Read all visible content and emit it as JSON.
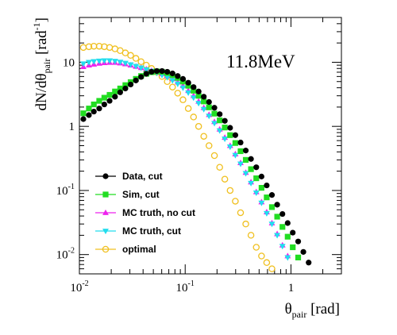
{
  "chart_data": {
    "type": "scatter",
    "annotation": "11.8MeV",
    "xlabel": {
      "main": "θ",
      "sub": "pair",
      "unit": " [rad]"
    },
    "ylabel": {
      "main": "dN/dθ",
      "sub": "pair",
      "unit_open": " [rad",
      "unit_exp": "-1",
      "unit_close": "]"
    },
    "x_scale": "log",
    "y_scale": "log",
    "xlim": [
      0.01,
      3.0
    ],
    "ylim": [
      0.005,
      50
    ],
    "x_ticks": [
      {
        "value": 0.01,
        "base": "10",
        "exp": "-2"
      },
      {
        "value": 0.1,
        "base": "10",
        "exp": "-1"
      },
      {
        "value": 1,
        "base": "1",
        "exp": ""
      }
    ],
    "y_ticks": [
      {
        "value": 0.01,
        "base": "10",
        "exp": "-2"
      },
      {
        "value": 0.1,
        "base": "10",
        "exp": "-1"
      },
      {
        "value": 1,
        "base": "1",
        "exp": ""
      },
      {
        "value": 10,
        "base": "10",
        "exp": ""
      }
    ],
    "grid": false,
    "legend_position": "bottom-left",
    "series": [
      {
        "name": "optimal",
        "color": "#f0c020",
        "marker": "open-circle",
        "x": [
          0.0109,
          0.0123,
          0.0137,
          0.0154,
          0.0172,
          0.0193,
          0.0217,
          0.0243,
          0.0272,
          0.0305,
          0.0342,
          0.0383,
          0.0429,
          0.0481,
          0.0539,
          0.0604,
          0.0677,
          0.0759,
          0.085,
          0.0953,
          0.107,
          0.12,
          0.134,
          0.15,
          0.168,
          0.189,
          0.212,
          0.237,
          0.266,
          0.298,
          0.334,
          0.374,
          0.419,
          0.47,
          0.527,
          0.59,
          0.661,
          0.741
        ],
        "y": [
          17,
          17.5,
          17.8,
          17.8,
          17.5,
          17,
          16.2,
          15.2,
          14,
          12.8,
          11.5,
          10.2,
          9,
          8,
          7,
          6,
          5,
          4.1,
          3.3,
          2.6,
          1.9,
          1.4,
          1.0,
          0.7,
          0.5,
          0.35,
          0.23,
          0.15,
          0.1,
          0.068,
          0.045,
          0.03,
          0.02,
          0.013,
          0.0095,
          0.0075,
          0.006,
          0.0043
        ]
      },
      {
        "name": "MC truth, no cut",
        "color": "#ee22ee",
        "marker": "triangle-up",
        "x": [
          0.0109,
          0.0123,
          0.0137,
          0.0154,
          0.0172,
          0.0193,
          0.0217,
          0.0243,
          0.0272,
          0.0305,
          0.0342,
          0.0383,
          0.0429,
          0.0481,
          0.0539,
          0.0604,
          0.0677,
          0.0759,
          0.085,
          0.0953,
          0.107,
          0.12,
          0.134,
          0.15,
          0.168,
          0.189,
          0.212,
          0.237,
          0.266,
          0.298,
          0.334,
          0.374,
          0.419,
          0.47,
          0.527,
          0.59,
          0.661,
          0.741,
          0.831,
          0.931
        ],
        "y": [
          8.5,
          9.0,
          9.3,
          9.6,
          9.8,
          9.9,
          9.9,
          9.7,
          9.4,
          9.0,
          8.6,
          8.2,
          7.8,
          7.4,
          7.0,
          6.6,
          6.1,
          5.5,
          4.9,
          4.3,
          3.6,
          3.0,
          2.45,
          1.95,
          1.52,
          1.18,
          0.9,
          0.67,
          0.5,
          0.37,
          0.27,
          0.19,
          0.135,
          0.095,
          0.066,
          0.046,
          0.031,
          0.021,
          0.014,
          0.0095
        ]
      },
      {
        "name": "MC truth, cut",
        "color": "#22ddee",
        "marker": "triangle-down",
        "x": [
          0.0109,
          0.0123,
          0.0137,
          0.0154,
          0.0172,
          0.0193,
          0.0217,
          0.0243,
          0.0272,
          0.0305,
          0.0342,
          0.0383,
          0.0429,
          0.0481,
          0.0539,
          0.0604,
          0.0677,
          0.0759,
          0.085,
          0.0953,
          0.107,
          0.12,
          0.134,
          0.15,
          0.168,
          0.189,
          0.212,
          0.237,
          0.266,
          0.298,
          0.334,
          0.374,
          0.419,
          0.47,
          0.527,
          0.59,
          0.661,
          0.741,
          0.831,
          0.931
        ],
        "y": [
          9.5,
          10.0,
          10.3,
          10.5,
          10.6,
          10.6,
          10.4,
          10.1,
          9.7,
          9.2,
          8.7,
          8.2,
          7.7,
          7.3,
          6.8,
          6.3,
          5.8,
          5.2,
          4.6,
          4.0,
          3.35,
          2.8,
          2.3,
          1.85,
          1.45,
          1.12,
          0.86,
          0.64,
          0.48,
          0.355,
          0.26,
          0.185,
          0.13,
          0.092,
          0.064,
          0.044,
          0.03,
          0.02,
          0.0135,
          0.009
        ]
      },
      {
        "name": "Sim, cut",
        "color": "#22dd22",
        "marker": "square",
        "x": [
          0.0109,
          0.0123,
          0.0137,
          0.0154,
          0.0172,
          0.0193,
          0.0217,
          0.0243,
          0.0272,
          0.0305,
          0.0342,
          0.0383,
          0.0429,
          0.0481,
          0.0539,
          0.0604,
          0.0677,
          0.0759,
          0.085,
          0.0953,
          0.107,
          0.12,
          0.134,
          0.15,
          0.168,
          0.189,
          0.212,
          0.237,
          0.266,
          0.298,
          0.334,
          0.374,
          0.419,
          0.47,
          0.527,
          0.59,
          0.661,
          0.741,
          0.831,
          0.931,
          1.04,
          1.17
        ],
        "y": [
          1.6,
          1.9,
          2.2,
          2.5,
          2.8,
          3.1,
          3.5,
          3.9,
          4.4,
          4.9,
          5.5,
          6.1,
          6.6,
          7.0,
          7.2,
          7.1,
          6.8,
          6.3,
          5.7,
          5.0,
          4.3,
          3.6,
          3.0,
          2.45,
          1.98,
          1.58,
          1.24,
          0.96,
          0.73,
          0.55,
          0.41,
          0.3,
          0.215,
          0.155,
          0.11,
          0.078,
          0.055,
          0.039,
          0.027,
          0.019,
          0.013,
          0.009
        ]
      },
      {
        "name": "Data, cut",
        "color": "#000000",
        "marker": "circle",
        "x": [
          0.0109,
          0.0123,
          0.0137,
          0.0154,
          0.0172,
          0.0193,
          0.0217,
          0.0243,
          0.0272,
          0.0305,
          0.0342,
          0.0383,
          0.0429,
          0.0481,
          0.0539,
          0.0604,
          0.0677,
          0.0759,
          0.085,
          0.0953,
          0.107,
          0.12,
          0.134,
          0.15,
          0.168,
          0.189,
          0.212,
          0.237,
          0.266,
          0.298,
          0.334,
          0.374,
          0.419,
          0.47,
          0.527,
          0.59,
          0.661,
          0.741,
          0.831,
          0.931,
          1.04,
          1.17,
          1.31,
          1.47
        ],
        "y": [
          1.3,
          1.5,
          1.7,
          1.9,
          2.2,
          2.5,
          2.9,
          3.4,
          3.9,
          4.5,
          5.2,
          5.9,
          6.6,
          7.1,
          7.3,
          7.3,
          7.1,
          6.7,
          6.1,
          5.5,
          4.8,
          4.1,
          3.5,
          2.9,
          2.4,
          1.95,
          1.55,
          1.22,
          0.95,
          0.73,
          0.56,
          0.42,
          0.31,
          0.23,
          0.165,
          0.12,
          0.085,
          0.06,
          0.043,
          0.031,
          0.022,
          0.016,
          0.011,
          0.0075
        ]
      }
    ],
    "legend": [
      {
        "label": "Data, cut",
        "color": "#000000",
        "marker": "circle"
      },
      {
        "label": "Sim, cut",
        "color": "#22dd22",
        "marker": "square"
      },
      {
        "label": "MC truth, no cut",
        "color": "#ee22ee",
        "marker": "triangle-up"
      },
      {
        "label": "MC truth, cut",
        "color": "#22ddee",
        "marker": "triangle-down"
      },
      {
        "label": "optimal",
        "color": "#f0c020",
        "marker": "open-circle"
      }
    ]
  }
}
